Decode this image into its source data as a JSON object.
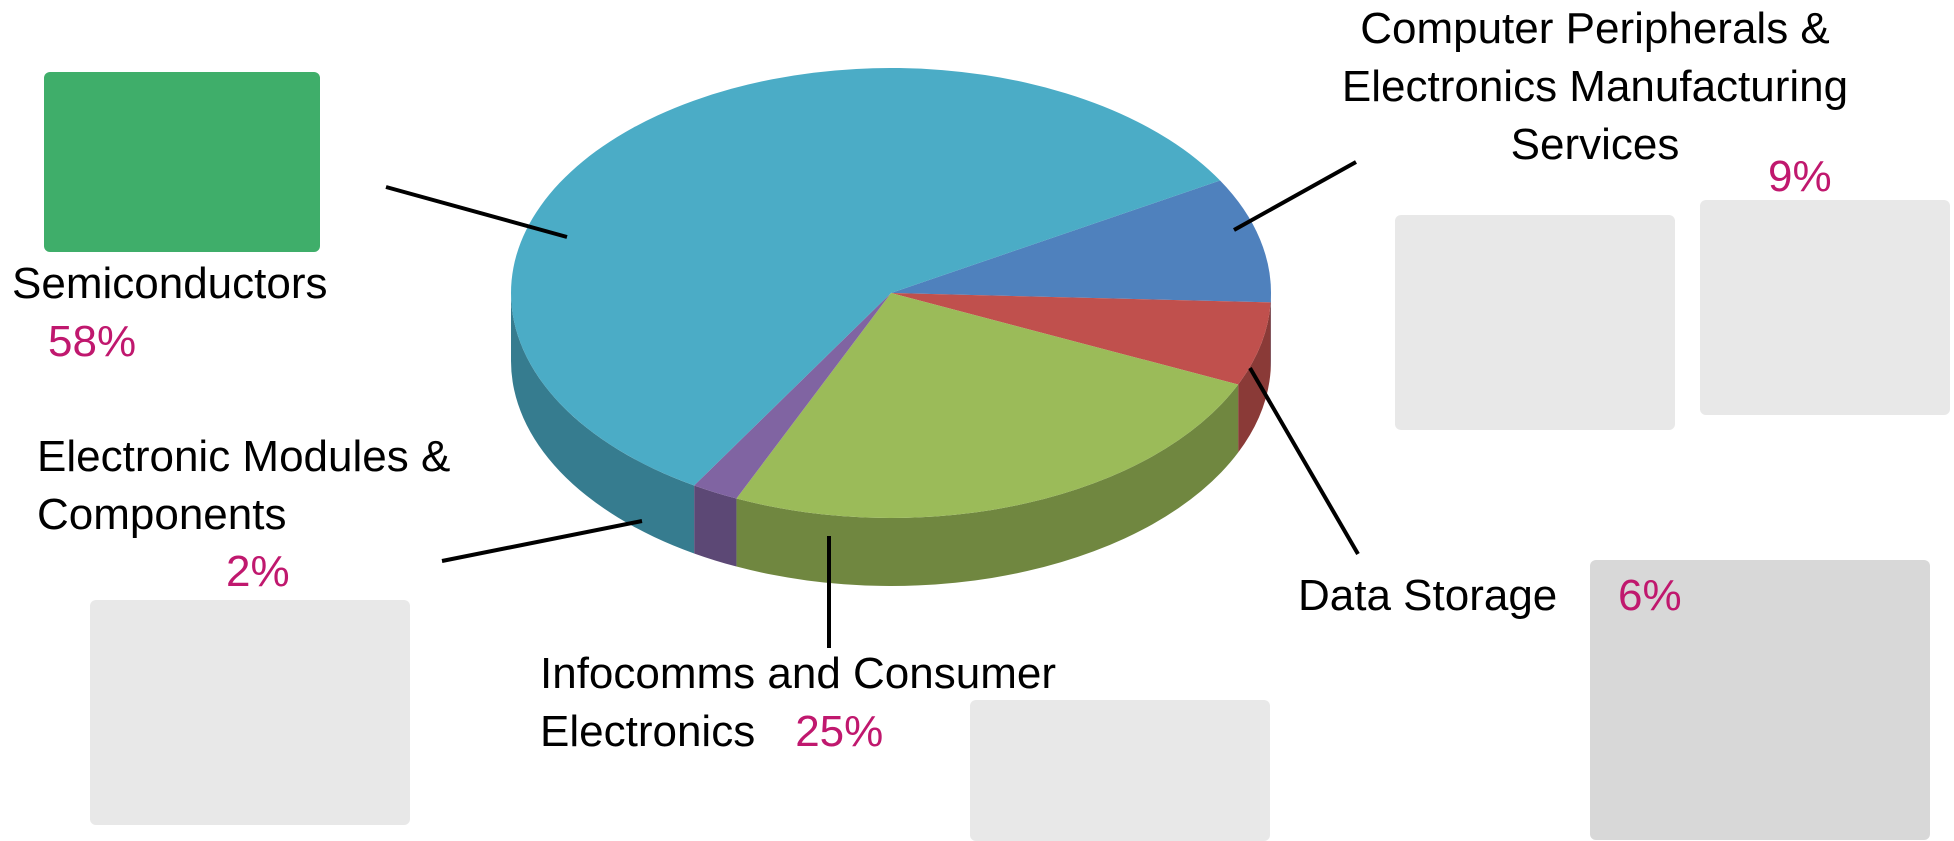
{
  "chart_data": {
    "type": "pie",
    "categories": [
      "Computer Peripherals & Electronics Manufacturing Services",
      "Data Storage",
      "Infocomms and Consumer Electronics",
      "Electronic Modules & Components",
      "Semiconductors"
    ],
    "values": [
      9,
      6,
      25,
      2,
      58
    ],
    "value_labels": [
      "9%",
      "6%",
      "25%",
      "2%",
      "58%"
    ],
    "colors": [
      "#4f81bd",
      "#c0504d",
      "#9bbb59",
      "#8064a2",
      "#4bacc6"
    ]
  }
}
